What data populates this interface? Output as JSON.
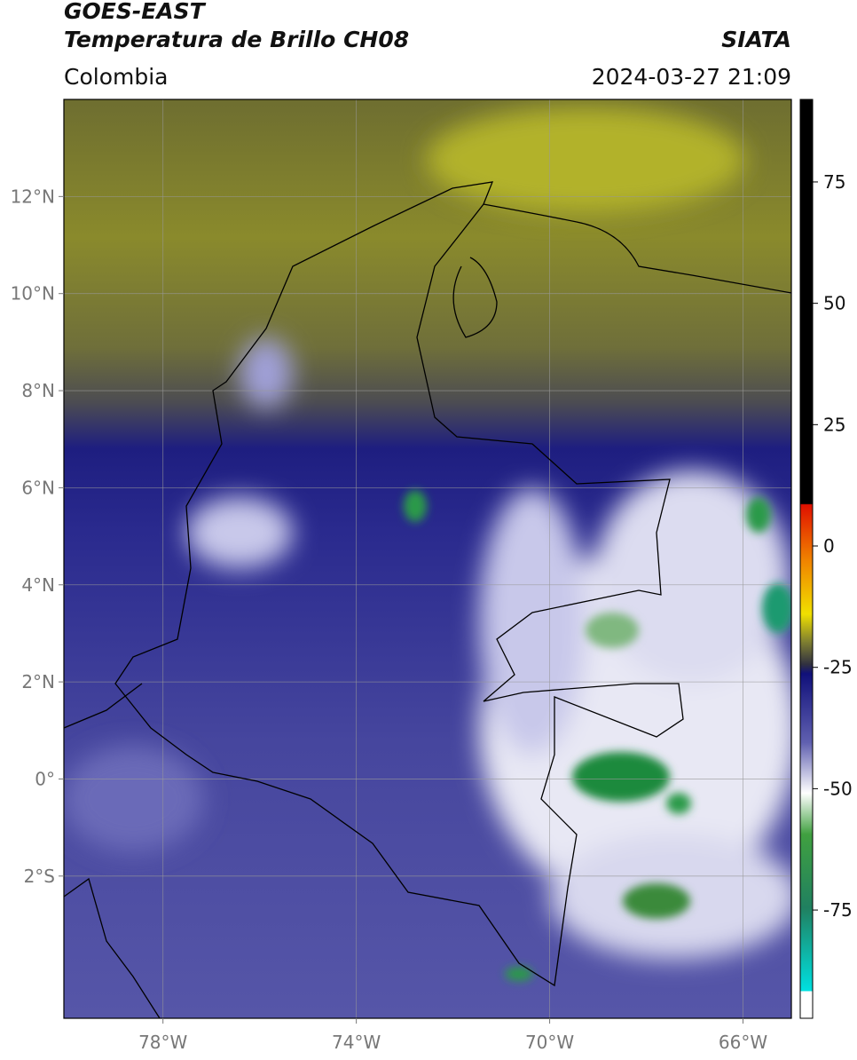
{
  "header": {
    "title": "GOES-EAST",
    "subtitle": "Temperatura de Brillo CH08",
    "source": "SIATA",
    "region": "Colombia",
    "timestamp": "2024-03-27 21:09"
  },
  "map": {
    "lon_range": [
      -80.05,
      -65.0
    ],
    "lat_range": [
      -4.93,
      14.0
    ],
    "lon_ticks": [
      {
        "value": -78,
        "label": "78°W"
      },
      {
        "value": -74,
        "label": "74°W"
      },
      {
        "value": -70,
        "label": "70°W"
      },
      {
        "value": -66,
        "label": "66°W"
      }
    ],
    "lat_ticks": [
      {
        "value": 12,
        "label": "12°N"
      },
      {
        "value": 10,
        "label": "10°N"
      },
      {
        "value": 8,
        "label": "8°N"
      },
      {
        "value": 6,
        "label": "6°N"
      },
      {
        "value": 4,
        "label": "4°N"
      },
      {
        "value": 2,
        "label": "2°N"
      },
      {
        "value": 0,
        "label": "0°"
      },
      {
        "value": -2,
        "label": "2°S"
      }
    ]
  },
  "colorbar": {
    "range": [
      -97.3,
      92
    ],
    "ticks": [
      75,
      50,
      25,
      0,
      -25,
      -50,
      -75
    ]
  }
}
